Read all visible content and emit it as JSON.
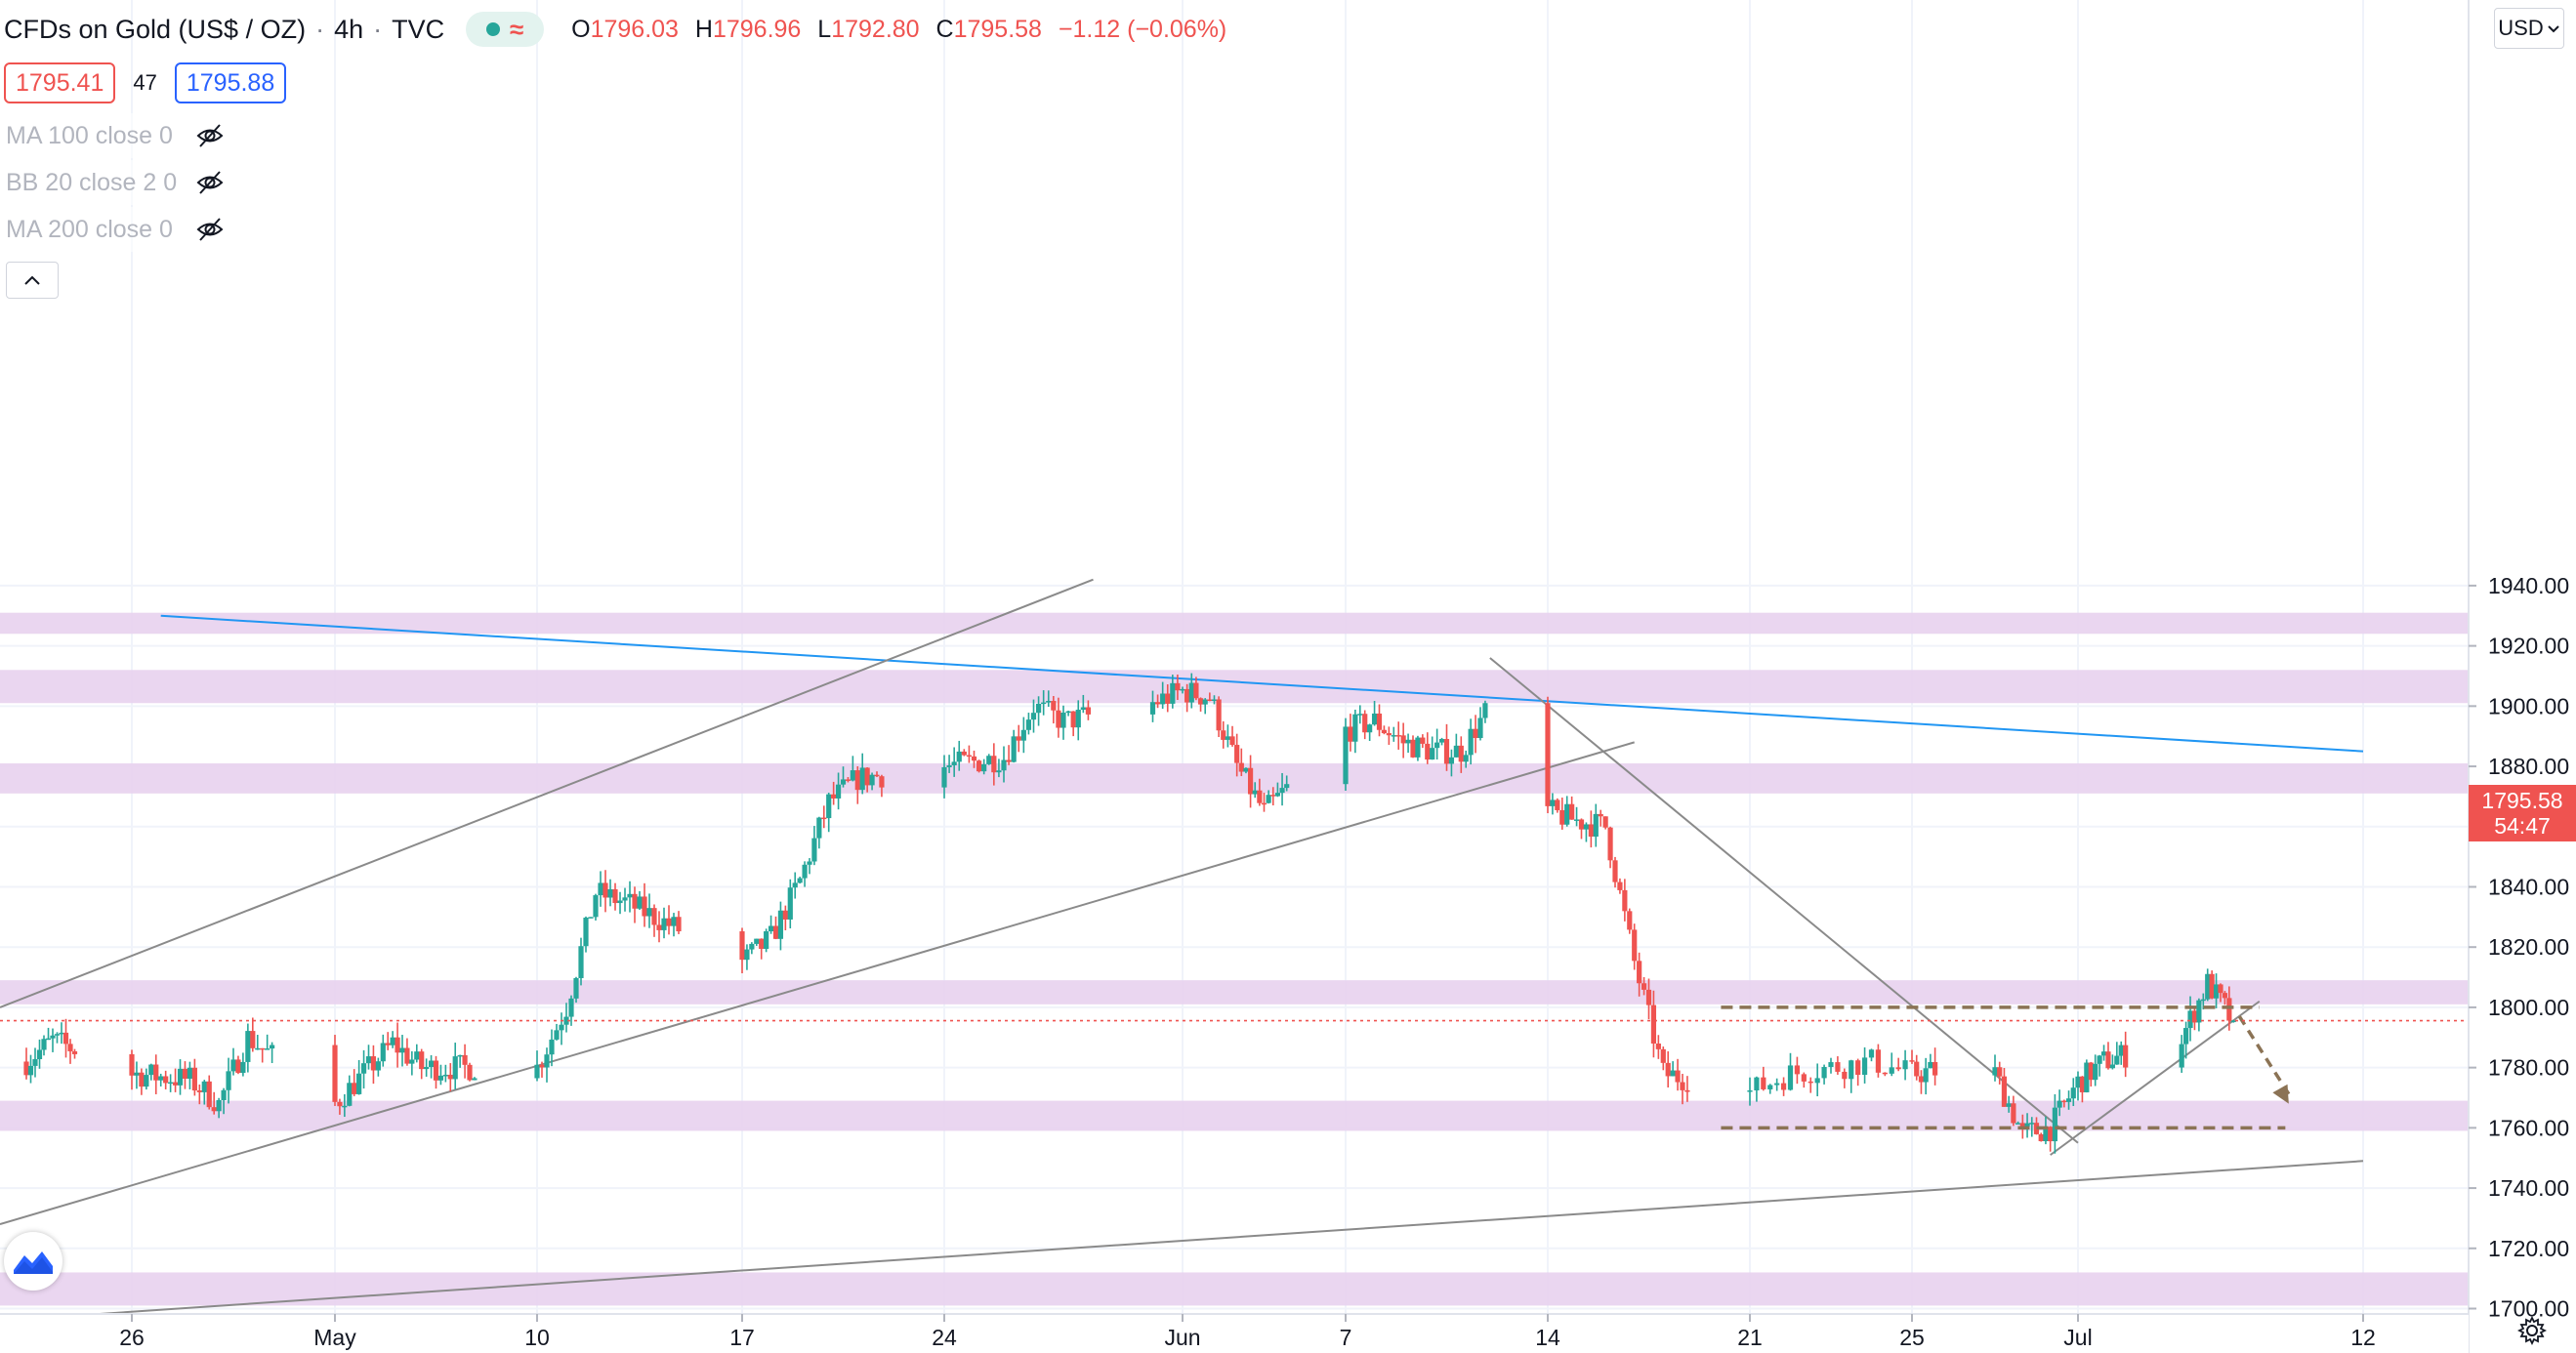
{
  "header": {
    "symbol": "CFDs on Gold (US$ / OZ)",
    "interval": "4h",
    "source": "TVC",
    "ohlc": {
      "open_label": "O",
      "open": "1796.03",
      "high_label": "H",
      "high": "1796.96",
      "low_label": "L",
      "low": "1792.80",
      "close_label": "C",
      "close": "1795.58",
      "change": "−1.12 (−0.06%)"
    },
    "bid": "1795.41",
    "spread": "47",
    "ask": "1795.88"
  },
  "indicators": [
    {
      "label": "MA 100 close 0",
      "hidden": true
    },
    {
      "label": "BB 20 close 2 0",
      "hidden": true
    },
    {
      "label": "MA 200 close 0",
      "hidden": true
    }
  ],
  "icons": {
    "eye_off": "eye-off-icon",
    "collapse": "chevron-up-icon",
    "currency_dropdown": "chevron-down-icon",
    "logo": "tradingview-logo-icon",
    "settings": "gear-icon"
  },
  "currency": "USD",
  "last_price": {
    "value": "1795.58",
    "countdown": "54:47"
  },
  "colors": {
    "up": "#26a69a",
    "down": "#ef5350",
    "zone": "#e8d2ee",
    "trend_blue": "#2196f3",
    "trend_gray": "#8a8a8a",
    "dashed": "#8b7355",
    "grid": "#f0f3fa"
  },
  "chart_data": {
    "type": "candlestick",
    "y_axis": {
      "min": 1700,
      "max": 1940,
      "ticks": [
        1700,
        1720,
        1740,
        1760,
        1780,
        1800,
        1820,
        1840,
        1860,
        1880,
        1900,
        1920,
        1940
      ]
    },
    "x_axis": {
      "ticks": [
        {
          "label": "26",
          "date": "2021-04-26"
        },
        {
          "label": "May",
          "date": "2021-05-03"
        },
        {
          "label": "10",
          "date": "2021-05-10"
        },
        {
          "label": "17",
          "date": "2021-05-17"
        },
        {
          "label": "24",
          "date": "2021-05-24"
        },
        {
          "label": "Jun",
          "date": "2021-06-01"
        },
        {
          "label": "7",
          "date": "2021-06-07"
        },
        {
          "label": "14",
          "date": "2021-06-14"
        },
        {
          "label": "21",
          "date": "2021-06-21"
        },
        {
          "label": "25",
          "date": "2021-06-25"
        },
        {
          "label": "Jul",
          "date": "2021-07-01"
        },
        {
          "label": "12",
          "date": "2021-07-12"
        }
      ]
    },
    "price_path": [
      [
        "2021-04-22",
        1782
      ],
      [
        "2021-04-23",
        1789
      ],
      [
        "2021-04-26",
        1778
      ],
      [
        "2021-04-28",
        1776
      ],
      [
        "2021-04-29",
        1768
      ],
      [
        "2021-04-30",
        1790
      ],
      [
        "2021-05-03",
        1768
      ],
      [
        "2021-05-05",
        1788
      ],
      [
        "2021-05-06",
        1780
      ],
      [
        "2021-05-10",
        1780
      ],
      [
        "2021-05-11",
        1800
      ],
      [
        "2021-05-12",
        1838
      ],
      [
        "2021-05-13",
        1835
      ],
      [
        "2021-05-14",
        1830
      ],
      [
        "2021-05-17",
        1815
      ],
      [
        "2021-05-18",
        1823
      ],
      [
        "2021-05-19",
        1842
      ],
      [
        "2021-05-20",
        1868
      ],
      [
        "2021-05-21",
        1876
      ],
      [
        "2021-05-24",
        1880
      ],
      [
        "2021-05-26",
        1883
      ],
      [
        "2021-05-27",
        1900
      ],
      [
        "2021-05-28",
        1895
      ],
      [
        "2021-05-31",
        1901
      ],
      [
        "2021-06-01",
        1905
      ],
      [
        "2021-06-02",
        1903
      ],
      [
        "2021-06-03",
        1880
      ],
      [
        "2021-06-04",
        1865
      ],
      [
        "2021-06-07",
        1892
      ],
      [
        "2021-06-08",
        1895
      ],
      [
        "2021-06-09",
        1888
      ],
      [
        "2021-06-10",
        1885
      ],
      [
        "2021-06-11",
        1885
      ],
      [
        "2021-06-12",
        1900
      ],
      [
        "2021-06-14",
        1865
      ],
      [
        "2021-06-15",
        1862
      ],
      [
        "2021-06-16",
        1860
      ],
      [
        "2021-06-17",
        1815
      ],
      [
        "2021-06-18",
        1778
      ],
      [
        "2021-06-21",
        1772
      ],
      [
        "2021-06-22",
        1778
      ],
      [
        "2021-06-23",
        1780
      ],
      [
        "2021-06-24",
        1782
      ],
      [
        "2021-06-25",
        1778
      ],
      [
        "2021-06-27",
        1780
      ],
      [
        "2021-06-28",
        1778
      ],
      [
        "2021-06-29",
        1758
      ],
      [
        "2021-06-30",
        1760
      ],
      [
        "2021-07-01",
        1775
      ],
      [
        "2021-07-02",
        1782
      ],
      [
        "2021-07-05",
        1790
      ],
      [
        "2021-07-06",
        1808
      ],
      [
        "2021-07-07",
        1795.58
      ]
    ],
    "last": 1795.58,
    "zones": [
      [
        1924,
        1931
      ],
      [
        1901,
        1912
      ],
      [
        1871,
        1881
      ],
      [
        1801,
        1809
      ],
      [
        1759,
        1769
      ],
      [
        1701,
        1712
      ]
    ],
    "trendlines": [
      {
        "color": "blue",
        "from": [
          "2021-04-27",
          1930
        ],
        "to": [
          "2021-07-12",
          1885
        ]
      },
      {
        "color": "gray",
        "from": [
          "2021-04-21",
          1800
        ],
        "to": [
          "2021-05-29",
          1942
        ]
      },
      {
        "color": "gray",
        "from": [
          "2021-04-21",
          1728
        ],
        "to": [
          "2021-06-17",
          1888
        ]
      },
      {
        "color": "gray",
        "from": [
          "2021-06-12",
          1916
        ],
        "to": [
          "2021-07-01",
          1755
        ]
      },
      {
        "color": "gray",
        "from": [
          "2021-04-21",
          1696
        ],
        "to": [
          "2021-07-12",
          1749
        ]
      },
      {
        "color": "gray",
        "from": [
          "2021-06-30",
          1751
        ],
        "to": [
          "2021-07-08",
          1802
        ]
      }
    ],
    "dashed_levels": [
      {
        "value": 1800,
        "from": "2021-06-20",
        "to": "2021-07-08"
      },
      {
        "value": 1760,
        "from": "2021-06-20",
        "to": "2021-07-09"
      }
    ],
    "projection_arrow": {
      "from": [
        "2021-07-07",
        1797
      ],
      "to": [
        "2021-07-08",
        1768
      ]
    }
  }
}
